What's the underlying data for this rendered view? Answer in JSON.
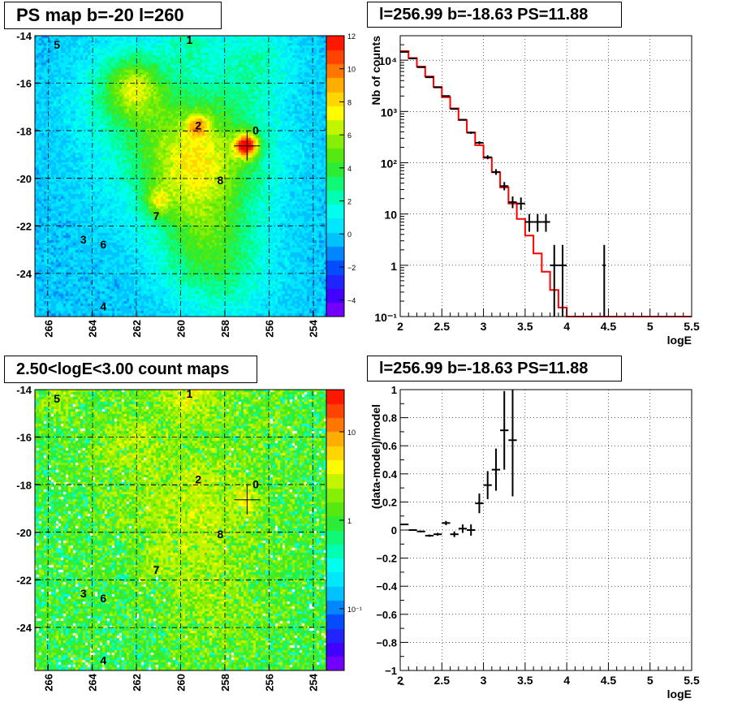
{
  "chart_data": [
    {
      "type": "heatmap",
      "title": "PS map b=-20 l=260",
      "x_tick_labels": [
        "266",
        "264",
        "262",
        "260",
        "258",
        "256",
        "254"
      ],
      "y_tick_labels": [
        "-14",
        "-16",
        "-18",
        "-20",
        "-22",
        "-24"
      ],
      "x_ticks": [
        266,
        264,
        262,
        260,
        258,
        256,
        254
      ],
      "y_ticks": [
        -14,
        -16,
        -18,
        -20,
        -22,
        -24
      ],
      "xlim": [
        266.6,
        253.4
      ],
      "ylim": [
        -25.8,
        -14
      ],
      "colorbar": {
        "min": -5,
        "max": 12,
        "tick_labels": [
          "12",
          "10",
          "8",
          "6",
          "4",
          "2",
          "0",
          "−2",
          "−4"
        ],
        "tick_values": [
          12,
          10,
          8,
          6,
          4,
          2,
          0,
          -2,
          -4
        ]
      },
      "sources": [
        {
          "label": "0",
          "l": 256.6,
          "b": -17.9
        },
        {
          "label": "1",
          "l": 259.6,
          "b": -14.1
        },
        {
          "label": "2",
          "l": 259.2,
          "b": -17.7
        },
        {
          "label": "3",
          "l": 264.4,
          "b": -22.5
        },
        {
          "label": "4",
          "l": 263.5,
          "b": -25.3
        },
        {
          "label": "5",
          "l": 265.6,
          "b": -14.3
        },
        {
          "label": "6",
          "l": 263.5,
          "b": -22.7
        },
        {
          "label": "7",
          "l": 261.1,
          "b": -21.5
        },
        {
          "label": "8",
          "l": 258.2,
          "b": -20.0
        }
      ],
      "marker": {
        "l": 256.99,
        "b": -18.63
      }
    },
    {
      "type": "line",
      "title": "l=256.99 b=-18.63 PS=11.88",
      "xlabel": "logE",
      "ylabel": "Nb of counts",
      "xlim": [
        2,
        5.5
      ],
      "ylim": [
        0.1,
        30000
      ],
      "y_scale": "log",
      "x_tick_labels": [
        "2",
        "2.5",
        "3",
        "3.5",
        "4",
        "4.5",
        "5",
        "5.5"
      ],
      "x_ticks": [
        2,
        2.5,
        3,
        3.5,
        4,
        4.5,
        5,
        5.5
      ],
      "y_tick_labels": [
        "10⁻¹",
        "1",
        "10",
        "10²",
        "10³",
        "10⁴"
      ],
      "y_ticks": [
        0.1,
        1,
        10,
        100,
        1000,
        10000
      ],
      "model_bins": [
        2.0,
        2.1,
        2.2,
        2.3,
        2.4,
        2.5,
        2.6,
        2.7,
        2.8,
        2.9,
        3.0,
        3.1,
        3.2,
        3.3,
        3.4,
        3.5,
        3.6,
        3.7,
        3.8,
        3.9,
        4.0,
        5.5
      ],
      "model_values": [
        15000,
        11000,
        7500,
        4800,
        3000,
        1900,
        1150,
        680,
        390,
        220,
        125,
        65,
        33,
        16,
        8,
        3.8,
        1.7,
        0.75,
        0.33,
        0.15,
        0.1
      ],
      "data_points": [
        {
          "x": 2.05,
          "y": 14500,
          "xerr": 0.05,
          "ylo": 14300,
          "yhi": 14700
        },
        {
          "x": 2.15,
          "y": 10800,
          "xerr": 0.05,
          "ylo": 10650,
          "yhi": 10950
        },
        {
          "x": 2.25,
          "y": 7300,
          "xerr": 0.05,
          "ylo": 7200,
          "yhi": 7400
        },
        {
          "x": 2.35,
          "y": 4650,
          "xerr": 0.05,
          "ylo": 4580,
          "yhi": 4720
        },
        {
          "x": 2.45,
          "y": 2950,
          "xerr": 0.05,
          "ylo": 2900,
          "yhi": 3000
        },
        {
          "x": 2.55,
          "y": 2000,
          "xerr": 0.05,
          "ylo": 1960,
          "yhi": 2040
        },
        {
          "x": 2.65,
          "y": 1120,
          "xerr": 0.05,
          "ylo": 1090,
          "yhi": 1150
        },
        {
          "x": 2.75,
          "y": 690,
          "xerr": 0.05,
          "ylo": 665,
          "yhi": 715
        },
        {
          "x": 2.85,
          "y": 385,
          "xerr": 0.05,
          "ylo": 365,
          "yhi": 405
        },
        {
          "x": 2.95,
          "y": 245,
          "xerr": 0.05,
          "ylo": 230,
          "yhi": 262
        },
        {
          "x": 3.05,
          "y": 128,
          "xerr": 0.05,
          "ylo": 117,
          "yhi": 140
        },
        {
          "x": 3.15,
          "y": 66,
          "xerr": 0.05,
          "ylo": 58,
          "yhi": 75
        },
        {
          "x": 3.25,
          "y": 35,
          "xerr": 0.05,
          "ylo": 29,
          "yhi": 42
        },
        {
          "x": 3.35,
          "y": 17,
          "xerr": 0.05,
          "ylo": 13,
          "yhi": 22
        },
        {
          "x": 3.45,
          "y": 16,
          "xerr": 0.05,
          "ylo": 12,
          "yhi": 21
        },
        {
          "x": 3.55,
          "y": 7,
          "xerr": 0.05,
          "ylo": 4.5,
          "yhi": 10
        },
        {
          "x": 3.65,
          "y": 7,
          "xerr": 0.05,
          "ylo": 4.5,
          "yhi": 10
        },
        {
          "x": 3.75,
          "y": 7,
          "xerr": 0.05,
          "ylo": 4.5,
          "yhi": 10
        },
        {
          "x": 3.85,
          "y": 1,
          "xerr": 0.05,
          "ylo": 0.1,
          "yhi": 2.5
        },
        {
          "x": 3.95,
          "y": 1,
          "xerr": 0.05,
          "ylo": 0.1,
          "yhi": 2.5
        },
        {
          "x": 4.45,
          "y": 1,
          "xerr": 0.02,
          "ylo": 0.1,
          "yhi": 2.5
        }
      ]
    },
    {
      "type": "heatmap",
      "title": "2.50<logE<3.00 count maps",
      "x_tick_labels": [
        "266",
        "264",
        "262",
        "260",
        "258",
        "256",
        "254"
      ],
      "y_tick_labels": [
        "-14",
        "-16",
        "-18",
        "-20",
        "-22",
        "-24"
      ],
      "colorbar": {
        "scale": "log",
        "tick_labels": [
          "10",
          "1",
          "10⁻¹"
        ],
        "tick_values": [
          10,
          1,
          0.1
        ],
        "min": 0.02,
        "max": 30
      }
    },
    {
      "type": "scatter",
      "title": "l=256.99 b=-18.63 PS=11.88",
      "xlabel": "logE",
      "ylabel": "(data-model)/model",
      "xlim": [
        2,
        5.5
      ],
      "ylim": [
        -1,
        1
      ],
      "x_tick_labels": [
        "2",
        "2.5",
        "3",
        "3.5",
        "4",
        "4.5",
        "5",
        "5.5"
      ],
      "x_ticks": [
        2,
        2.5,
        3,
        3.5,
        4,
        4.5,
        5,
        5.5
      ],
      "y_tick_labels": [
        "1",
        "0.8",
        "0.6",
        "0.4",
        "0.2",
        "0",
        "−0.2",
        "−0.4",
        "−0.6",
        "−0.8",
        "−1"
      ],
      "y_ticks": [
        1,
        0.8,
        0.6,
        0.4,
        0.2,
        0,
        -0.2,
        -0.4,
        -0.6,
        -0.8,
        -1
      ],
      "points": [
        {
          "x": 2.05,
          "y": 0.04,
          "yerr": 0.005
        },
        {
          "x": 2.15,
          "y": 0.0,
          "yerr": 0.005
        },
        {
          "x": 2.25,
          "y": -0.01,
          "yerr": 0.006
        },
        {
          "x": 2.35,
          "y": -0.04,
          "yerr": 0.008
        },
        {
          "x": 2.45,
          "y": -0.03,
          "yerr": 0.01
        },
        {
          "x": 2.55,
          "y": 0.05,
          "yerr": 0.015
        },
        {
          "x": 2.65,
          "y": -0.03,
          "yerr": 0.02
        },
        {
          "x": 2.75,
          "y": 0.01,
          "yerr": 0.03
        },
        {
          "x": 2.85,
          "y": 0.0,
          "yerr": 0.04
        },
        {
          "x": 2.95,
          "y": 0.19,
          "yerr": 0.07
        },
        {
          "x": 3.05,
          "y": 0.32,
          "yerr": 0.1
        },
        {
          "x": 3.15,
          "y": 0.43,
          "yerr": 0.15
        },
        {
          "x": 3.25,
          "y": 0.71,
          "yerr": 0.28
        },
        {
          "x": 3.35,
          "y": 0.64,
          "yerr": 0.4
        }
      ]
    }
  ]
}
